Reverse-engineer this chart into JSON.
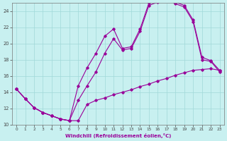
{
  "xlabel": "Windchill (Refroidissement éolien,°C)",
  "bg_color": "#c8f0f0",
  "line_color": "#990099",
  "grid_color": "#a0d8d8",
  "xlim": [
    -0.5,
    23.5
  ],
  "ylim": [
    10,
    25
  ],
  "yticks": [
    10,
    12,
    14,
    16,
    18,
    20,
    22,
    24
  ],
  "xticks": [
    0,
    1,
    2,
    3,
    4,
    5,
    6,
    7,
    8,
    9,
    10,
    11,
    12,
    13,
    14,
    15,
    16,
    17,
    18,
    19,
    20,
    21,
    22,
    23
  ],
  "line1_x": [
    0,
    1,
    2,
    3,
    4,
    5,
    6,
    7,
    8,
    9,
    10,
    11,
    12,
    13,
    14,
    15,
    16,
    17,
    18,
    19,
    20,
    21,
    22,
    23
  ],
  "line1_y": [
    14.4,
    13.2,
    12.1,
    11.5,
    11.1,
    10.7,
    10.5,
    14.8,
    17.0,
    18.8,
    20.9,
    21.8,
    19.4,
    19.6,
    21.8,
    25.0,
    25.4,
    25.7,
    25.1,
    24.7,
    22.9,
    18.3,
    17.9,
    16.7
  ],
  "line2_x": [
    0,
    1,
    2,
    3,
    4,
    5,
    6,
    7,
    8,
    9,
    10,
    11,
    12,
    13,
    14,
    15,
    16,
    17,
    18,
    19,
    20,
    21,
    22,
    23
  ],
  "line2_y": [
    14.4,
    13.2,
    12.1,
    11.5,
    11.1,
    10.7,
    10.5,
    13.0,
    14.8,
    16.5,
    18.8,
    20.6,
    19.2,
    19.4,
    21.5,
    24.7,
    25.1,
    25.5,
    24.9,
    24.5,
    22.7,
    18.0,
    17.8,
    16.5
  ],
  "line3_x": [
    0,
    1,
    2,
    3,
    4,
    5,
    6,
    7,
    8,
    9,
    10,
    11,
    12,
    13,
    14,
    15,
    16,
    17,
    18,
    19,
    20,
    21,
    22,
    23
  ],
  "line3_y": [
    14.4,
    13.2,
    12.1,
    11.5,
    11.1,
    10.7,
    10.5,
    10.5,
    12.5,
    13.0,
    13.3,
    13.7,
    14.0,
    14.3,
    14.7,
    15.0,
    15.4,
    15.7,
    16.1,
    16.4,
    16.7,
    16.8,
    16.9,
    16.7
  ]
}
